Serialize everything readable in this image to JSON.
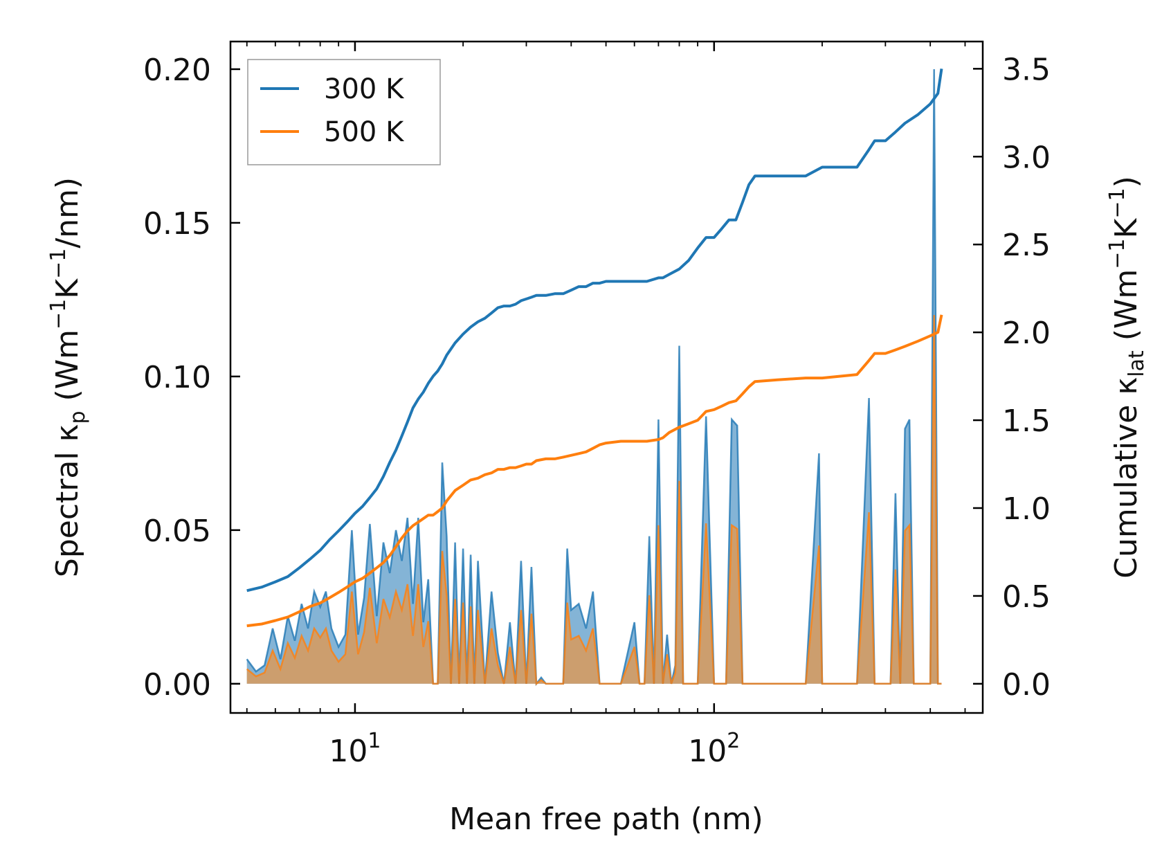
{
  "chart_data": {
    "type": "line",
    "xscale": "log",
    "xlabel": "Mean free path (nm)",
    "ylabel_left": {
      "main": "Spectral κ",
      "sub": "p",
      "units_pre": " (Wm",
      "exp1": "−1",
      "mid": "K",
      "exp2": "−1",
      "post": "/nm)"
    },
    "ylabel_right": {
      "main": "Cumulative κ",
      "sub": "lat",
      "units_pre": " (Wm",
      "exp1": "−1",
      "mid": "K",
      "exp2": "−1",
      "post": ")"
    },
    "xlim": [
      4.5,
      560
    ],
    "ylim_left": [
      -0.0095,
      0.209
    ],
    "ylim_right": [
      -0.166,
      3.655
    ],
    "x_ticks": [
      {
        "base": "10",
        "exp": "1",
        "value": 10
      },
      {
        "base": "10",
        "exp": "2",
        "value": 100
      }
    ],
    "y_ticks_left": [
      "0.00",
      "0.05",
      "0.10",
      "0.15",
      "0.20"
    ],
    "y_ticks_right": [
      "0.0",
      "0.5",
      "1.0",
      "1.5",
      "2.0",
      "2.5",
      "3.0",
      "3.5"
    ],
    "legend": {
      "position": "upper-left",
      "entries": [
        "300 K",
        "500 K"
      ]
    },
    "colors": {
      "300K": "#1f77b4",
      "500K": "#ff7f0e",
      "fill_300K": "#1f77b4",
      "fill_500K": "#d89a5c"
    },
    "series": [
      {
        "name": "300 K",
        "axis": "right",
        "kind": "cumulative",
        "x": [
          5,
          5.5,
          6,
          6.5,
          7,
          7.5,
          8,
          8.5,
          9,
          9.5,
          10,
          10.5,
          11,
          11.5,
          12,
          12.5,
          13,
          13.5,
          14,
          14.5,
          15,
          15.5,
          16,
          16.5,
          17,
          17.5,
          18,
          19,
          20,
          21,
          22,
          23,
          24,
          25,
          26,
          27,
          28,
          29,
          30,
          31,
          32,
          34,
          36,
          38,
          40,
          42,
          44,
          46,
          48,
          50,
          55,
          60,
          65,
          70,
          72,
          75,
          80,
          85,
          90,
          95,
          100,
          105,
          110,
          115,
          120,
          125,
          130,
          150,
          180,
          200,
          250,
          270,
          280,
          300,
          320,
          340,
          370,
          400,
          420,
          430
        ],
        "y": [
          0.53,
          0.55,
          0.58,
          0.61,
          0.66,
          0.71,
          0.76,
          0.82,
          0.87,
          0.92,
          0.97,
          1.01,
          1.06,
          1.11,
          1.18,
          1.26,
          1.33,
          1.41,
          1.49,
          1.57,
          1.62,
          1.66,
          1.71,
          1.75,
          1.78,
          1.82,
          1.87,
          1.94,
          1.99,
          2.03,
          2.06,
          2.08,
          2.11,
          2.14,
          2.15,
          2.15,
          2.16,
          2.18,
          2.19,
          2.2,
          2.21,
          2.21,
          2.22,
          2.22,
          2.24,
          2.26,
          2.26,
          2.28,
          2.28,
          2.29,
          2.29,
          2.29,
          2.29,
          2.31,
          2.31,
          2.33,
          2.36,
          2.41,
          2.48,
          2.54,
          2.54,
          2.59,
          2.64,
          2.64,
          2.74,
          2.84,
          2.89,
          2.89,
          2.89,
          2.94,
          2.94,
          3.04,
          3.09,
          3.09,
          3.14,
          3.19,
          3.24,
          3.3,
          3.36,
          3.5
        ]
      },
      {
        "name": "500 K",
        "axis": "right",
        "kind": "cumulative",
        "x": [
          5,
          5.5,
          6,
          6.5,
          7,
          7.5,
          8,
          8.5,
          9,
          9.5,
          10,
          10.5,
          11,
          11.5,
          12,
          12.5,
          13,
          13.5,
          14,
          14.5,
          15,
          15.5,
          16,
          16.5,
          17,
          17.5,
          18,
          19,
          20,
          21,
          22,
          23,
          24,
          25,
          26,
          27,
          28,
          29,
          30,
          31,
          32,
          34,
          36,
          38,
          40,
          42,
          44,
          46,
          48,
          50,
          55,
          60,
          65,
          70,
          72,
          75,
          80,
          85,
          90,
          95,
          100,
          105,
          110,
          115,
          120,
          125,
          130,
          150,
          180,
          200,
          250,
          270,
          280,
          300,
          320,
          340,
          370,
          400,
          420,
          430
        ],
        "y": [
          0.33,
          0.34,
          0.36,
          0.38,
          0.41,
          0.44,
          0.46,
          0.49,
          0.52,
          0.55,
          0.58,
          0.6,
          0.63,
          0.66,
          0.69,
          0.73,
          0.78,
          0.83,
          0.87,
          0.9,
          0.92,
          0.94,
          0.96,
          0.96,
          0.98,
          1.0,
          1.04,
          1.1,
          1.13,
          1.16,
          1.17,
          1.19,
          1.2,
          1.22,
          1.22,
          1.23,
          1.23,
          1.24,
          1.25,
          1.25,
          1.27,
          1.28,
          1.28,
          1.29,
          1.3,
          1.31,
          1.32,
          1.34,
          1.36,
          1.37,
          1.38,
          1.38,
          1.38,
          1.39,
          1.4,
          1.43,
          1.46,
          1.48,
          1.5,
          1.55,
          1.56,
          1.58,
          1.6,
          1.61,
          1.65,
          1.69,
          1.72,
          1.73,
          1.74,
          1.74,
          1.76,
          1.84,
          1.88,
          1.88,
          1.9,
          1.92,
          1.95,
          1.98,
          2.0,
          2.1
        ]
      },
      {
        "name": "300 K spectral",
        "axis": "left",
        "kind": "spectral",
        "x": [
          5,
          5.3,
          5.6,
          5.9,
          6.2,
          6.5,
          6.8,
          7.1,
          7.4,
          7.7,
          8.0,
          8.3,
          8.6,
          9.0,
          9.4,
          9.8,
          10.2,
          10.6,
          11.0,
          11.5,
          12.0,
          12.5,
          13.0,
          13.5,
          14.0,
          14.5,
          15.0,
          15.5,
          16.0,
          16.5,
          17.0,
          17.5,
          18.0,
          18.5,
          19.0,
          19.5,
          20.0,
          20.5,
          21.0,
          21.5,
          22.0,
          23.0,
          24.0,
          25.0,
          26.0,
          27.0,
          28.0,
          29.0,
          30.0,
          31.0,
          32.0,
          33.0,
          34.0,
          36.0,
          38.0,
          39.0,
          40.0,
          42.0,
          44.0,
          46.0,
          48.0,
          50.0,
          55.0,
          60.0,
          62.0,
          64.0,
          66.0,
          68.0,
          70.0,
          72.0,
          74.0,
          76.0,
          78.0,
          80.0,
          82.0,
          84.0,
          86.0,
          88.0,
          90.0,
          95.0,
          100.0,
          104.0,
          108.0,
          112.0,
          116.0,
          120.0,
          124.0,
          128.0,
          135.0,
          150.0,
          180.0,
          196.0,
          200.0,
          204.0,
          250.0,
          270.0,
          280.0,
          290.0,
          310.0,
          320.0,
          330.0,
          340.0,
          350.0,
          360.0,
          380.0,
          400.0,
          410.0,
          420.0,
          430.0
        ],
        "y": [
          0.008,
          0.004,
          0.006,
          0.018,
          0.008,
          0.022,
          0.014,
          0.026,
          0.018,
          0.03,
          0.025,
          0.03,
          0.018,
          0.012,
          0.016,
          0.05,
          0.016,
          0.028,
          0.052,
          0.022,
          0.046,
          0.036,
          0.05,
          0.04,
          0.054,
          0.026,
          0.054,
          0.02,
          0.034,
          0.0,
          0.0,
          0.072,
          0.048,
          0.0,
          0.046,
          0.0,
          0.044,
          0.0,
          0.042,
          0.0,
          0.04,
          0.0,
          0.03,
          0.01,
          0.0,
          0.02,
          0.0,
          0.04,
          0.0,
          0.038,
          0.0,
          0.002,
          0.0,
          0.0,
          0.0,
          0.044,
          0.024,
          0.026,
          0.018,
          0.03,
          0.0,
          0.0,
          0.0,
          0.02,
          0.0,
          0.0,
          0.048,
          0.0,
          0.086,
          0.0,
          0.016,
          0.0,
          0.006,
          0.11,
          0.0,
          0.0,
          0.0,
          0.0,
          0.0,
          0.087,
          0.0,
          0.0,
          0.0,
          0.086,
          0.084,
          0.0,
          0.0,
          0.0,
          0.0,
          0.0,
          0.0,
          0.075,
          0.0,
          0.0,
          0.0,
          0.093,
          0.0,
          0.0,
          0.0,
          0.062,
          0.0,
          0.083,
          0.086,
          0.0,
          0.0,
          0.0,
          0.2,
          0.0,
          0.0
        ]
      }
    ]
  }
}
